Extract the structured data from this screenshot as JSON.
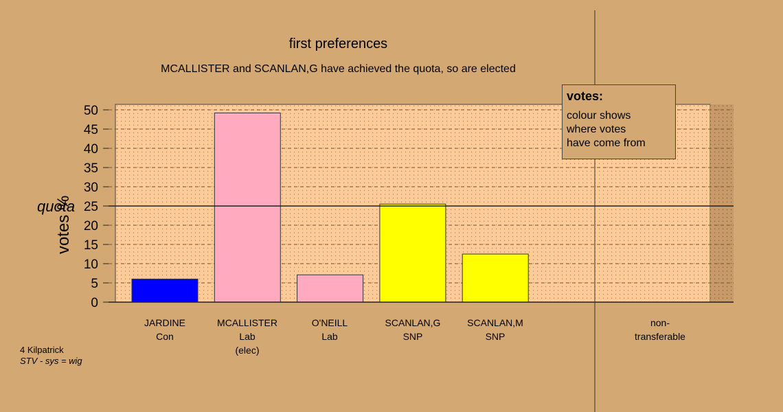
{
  "header": {
    "title": "first preferences",
    "subtitle": "MCALLISTER and SCANLAN,G have achieved the quota, so are elected"
  },
  "legend": {
    "title": "votes:",
    "lines": [
      "colour shows",
      "where votes",
      "have come from"
    ]
  },
  "footer": {
    "ward": "4 Kilpatrick",
    "system": "STV - sys = wig"
  },
  "chart_data": {
    "type": "bar",
    "ylabel": "votes %",
    "ylim": [
      0,
      50
    ],
    "yticks": [
      0,
      5,
      10,
      15,
      20,
      25,
      30,
      35,
      40,
      45,
      50
    ],
    "quota": 25,
    "quota_label": "quota",
    "grid": true,
    "legend_position": "top-right",
    "categories": [
      {
        "name": "JARDINE",
        "party": "Con",
        "note": "",
        "value": 6.0,
        "color": "#0000ff"
      },
      {
        "name": "MCALLISTER",
        "party": "Lab",
        "note": "(elec)",
        "value": 49.2,
        "color": "#ffaabf"
      },
      {
        "name": "O'NEILL",
        "party": "Lab",
        "note": "",
        "value": 7.1,
        "color": "#ffaabf"
      },
      {
        "name": "SCANLAN,G",
        "party": "SNP",
        "note": "",
        "value": 25.5,
        "color": "#ffff00"
      },
      {
        "name": "SCANLAN,M",
        "party": "SNP",
        "note": "",
        "value": 12.5,
        "color": "#ffff00"
      }
    ],
    "nontransferable": {
      "line1": "non-",
      "line2": "transferable",
      "value": 0
    }
  }
}
